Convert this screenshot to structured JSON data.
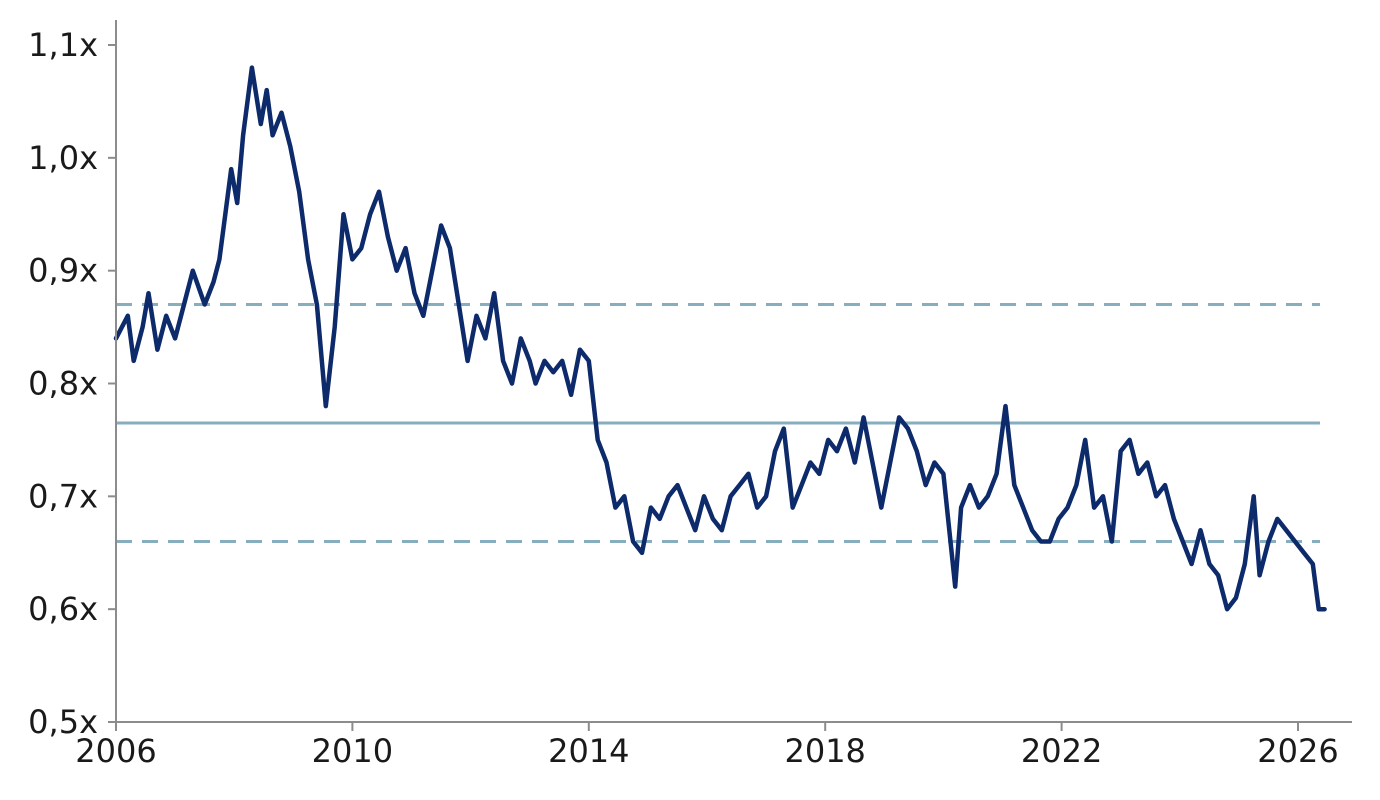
{
  "chart_data": {
    "type": "line",
    "title": "",
    "xlabel": "",
    "ylabel": "",
    "xlim": [
      2006,
      2026.6
    ],
    "ylim": [
      0.5,
      1.1
    ],
    "grid": false,
    "legend": "none",
    "x_ticks": [
      2006,
      2010,
      2014,
      2018,
      2022,
      2026
    ],
    "x_tick_labels": [
      "2006",
      "2010",
      "2014",
      "2018",
      "2022",
      "2026"
    ],
    "y_ticks": [
      0.5,
      0.6,
      0.7,
      0.8,
      0.9,
      1.0,
      1.1
    ],
    "y_tick_labels": [
      "0,5x",
      "0,6x",
      "0,7x",
      "0,8x",
      "0,9x",
      "1,0x",
      "1,1x"
    ],
    "colors": {
      "series": "#0d2a6b",
      "reference": "#86aebf",
      "axis": "#8c8c8c"
    },
    "reference_lines": [
      {
        "kind": "mean",
        "value": 0.765,
        "style": "solid"
      },
      {
        "kind": "upper",
        "value": 0.87,
        "style": "dashed"
      },
      {
        "kind": "lower",
        "value": 0.66,
        "style": "dashed"
      }
    ],
    "series": [
      {
        "x": [
          2006.0,
          2006.2,
          2006.3,
          2006.45,
          2006.55,
          2006.7,
          2006.85,
          2007.0,
          2007.15,
          2007.3,
          2007.5,
          2007.65,
          2007.75,
          2007.85,
          2007.95,
          2008.05,
          2008.15,
          2008.3,
          2008.45,
          2008.55,
          2008.65,
          2008.8,
          2008.95,
          2009.1,
          2009.25,
          2009.4,
          2009.55,
          2009.7,
          2009.85,
          2010.0,
          2010.15,
          2010.3,
          2010.45,
          2010.6,
          2010.75,
          2010.9,
          2011.05,
          2011.2,
          2011.35,
          2011.5,
          2011.65,
          2011.8,
          2011.95,
          2012.1,
          2012.25,
          2012.4,
          2012.55,
          2012.7,
          2012.85,
          2013.0,
          2013.1,
          2013.25,
          2013.4,
          2013.55,
          2013.7,
          2013.85,
          2014.0,
          2014.15,
          2014.3,
          2014.45,
          2014.6,
          2014.75,
          2014.9,
          2015.05,
          2015.2,
          2015.35,
          2015.5,
          2015.65,
          2015.8,
          2015.95,
          2016.1,
          2016.25,
          2016.4,
          2016.55,
          2016.7,
          2016.85,
          2017.0,
          2017.15,
          2017.3,
          2017.45,
          2017.6,
          2017.75,
          2017.9,
          2018.05,
          2018.2,
          2018.35,
          2018.5,
          2018.65,
          2018.8,
          2018.95,
          2019.1,
          2019.25,
          2019.4,
          2019.55,
          2019.7,
          2019.85,
          2020.0,
          2020.1,
          2020.2,
          2020.3,
          2020.45,
          2020.6,
          2020.75,
          2020.9,
          2021.05,
          2021.2,
          2021.35,
          2021.5,
          2021.65,
          2021.8,
          2021.95,
          2022.1,
          2022.25,
          2022.4,
          2022.55,
          2022.7,
          2022.85,
          2023.0,
          2023.15,
          2023.3,
          2023.45,
          2023.6,
          2023.75,
          2023.9,
          2024.05,
          2024.2,
          2024.35,
          2024.5,
          2024.65,
          2024.8,
          2024.95,
          2025.1,
          2025.25,
          2025.35,
          2025.5,
          2025.65,
          2025.8,
          2025.95,
          2026.1,
          2026.25,
          2026.35,
          2026.45
        ],
        "y": [
          0.84,
          0.86,
          0.82,
          0.85,
          0.88,
          0.83,
          0.86,
          0.84,
          0.87,
          0.9,
          0.87,
          0.89,
          0.91,
          0.95,
          0.99,
          0.96,
          1.02,
          1.08,
          1.03,
          1.06,
          1.02,
          1.04,
          1.01,
          0.97,
          0.91,
          0.87,
          0.78,
          0.85,
          0.95,
          0.91,
          0.92,
          0.95,
          0.97,
          0.93,
          0.9,
          0.92,
          0.88,
          0.86,
          0.9,
          0.94,
          0.92,
          0.87,
          0.82,
          0.86,
          0.84,
          0.88,
          0.82,
          0.8,
          0.84,
          0.82,
          0.8,
          0.82,
          0.81,
          0.82,
          0.79,
          0.83,
          0.82,
          0.75,
          0.73,
          0.69,
          0.7,
          0.66,
          0.65,
          0.69,
          0.68,
          0.7,
          0.71,
          0.69,
          0.67,
          0.7,
          0.68,
          0.67,
          0.7,
          0.71,
          0.72,
          0.69,
          0.7,
          0.74,
          0.76,
          0.69,
          0.71,
          0.73,
          0.72,
          0.75,
          0.74,
          0.76,
          0.73,
          0.77,
          0.73,
          0.69,
          0.73,
          0.77,
          0.76,
          0.74,
          0.71,
          0.73,
          0.72,
          0.67,
          0.62,
          0.69,
          0.71,
          0.69,
          0.7,
          0.72,
          0.78,
          0.71,
          0.69,
          0.67,
          0.66,
          0.66,
          0.68,
          0.69,
          0.71,
          0.75,
          0.69,
          0.7,
          0.66,
          0.74,
          0.75,
          0.72,
          0.73,
          0.7,
          0.71,
          0.68,
          0.66,
          0.64,
          0.67,
          0.64,
          0.63,
          0.6,
          0.61,
          0.64,
          0.7,
          0.63,
          0.66,
          0.68,
          0.67,
          0.66,
          0.65,
          0.64,
          0.6,
          0.6
        ]
      }
    ]
  }
}
